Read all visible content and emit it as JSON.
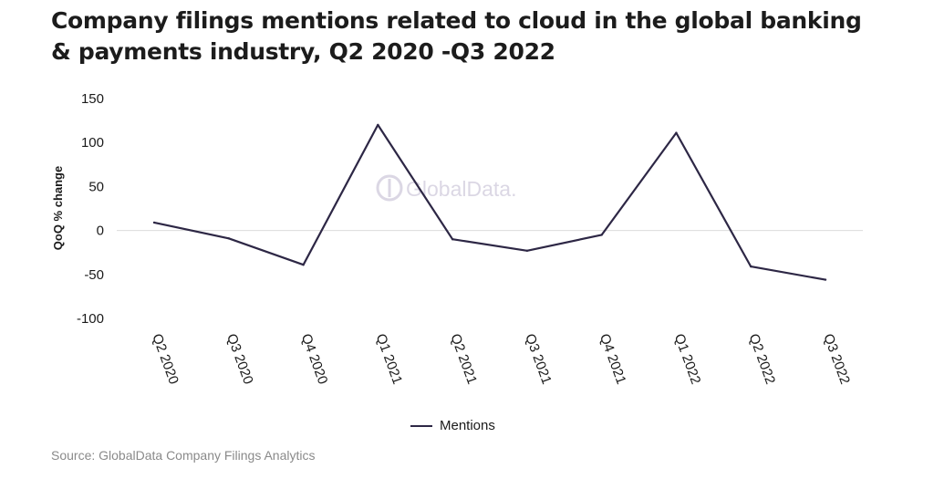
{
  "chart_data": {
    "type": "line",
    "title": "Company filings mentions related to cloud in the global banking & payments industry, Q2 2020 -Q3 2022",
    "xlabel": "",
    "ylabel": "QoQ % change",
    "ylim": [
      -100,
      150
    ],
    "yticks": [
      150,
      100,
      50,
      0,
      -50,
      -100
    ],
    "ytick_labels": [
      "150",
      "100",
      "50",
      "0",
      "-50",
      "-100"
    ],
    "grid": false,
    "zero_line": true,
    "categories": [
      "Q2 2020",
      "Q3 2020",
      "Q4 2020",
      "Q1 2021",
      "Q2 2021",
      "Q3 2021",
      "Q4 2021",
      "Q1 2022",
      "Q2 2022",
      "Q3 2022"
    ],
    "series": [
      {
        "name": "Mentions",
        "color": "#2d2745",
        "values": [
          9,
          -9,
          -39,
          120,
          -10,
          -23,
          -5,
          111,
          -41,
          -56
        ]
      }
    ],
    "legend_position": "bottom",
    "watermark": "GlobalData."
  },
  "source": "Source: GlobalData Company Filings Analytics"
}
